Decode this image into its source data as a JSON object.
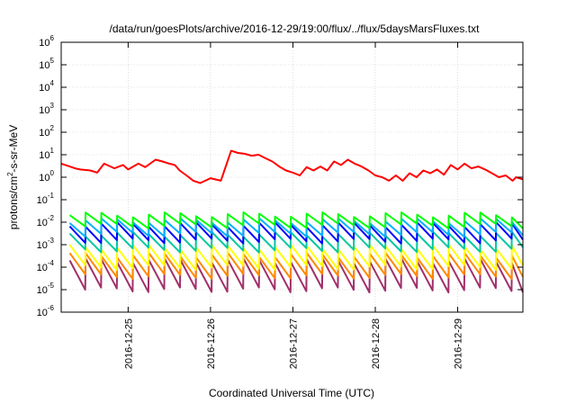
{
  "chart_data": {
    "type": "line",
    "title": "/data/run/goesPlots/archive/2016-12-29/19:00/flux/../flux/5daysMarsFluxes.txt",
    "xlabel": "Coordinated Universal Time (UTC)",
    "ylabel": "protons/cm2-s-sr-MeV",
    "ylabel_base": "protons/cm",
    "ylabel_sup": "2",
    "ylabel_rest": "-s-sr-MeV",
    "yscale": "log",
    "ylim": [
      1e-06,
      1000000.0
    ],
    "y_ticks": [
      {
        "value": -6,
        "label": "-6"
      },
      {
        "value": -5,
        "label": "-5"
      },
      {
        "value": -4,
        "label": "-4"
      },
      {
        "value": -3,
        "label": "-3"
      },
      {
        "value": -2,
        "label": "-2"
      },
      {
        "value": -1,
        "label": "-1"
      },
      {
        "value": 0,
        "label": "0"
      },
      {
        "value": 1,
        "label": "1"
      },
      {
        "value": 2,
        "label": "2"
      },
      {
        "value": 3,
        "label": "3"
      },
      {
        "value": 4,
        "label": "4"
      },
      {
        "value": 5,
        "label": "5"
      },
      {
        "value": 6,
        "label": "6"
      }
    ],
    "xlim": [
      "2016-12-24 04:30",
      "2016-12-29 19:00"
    ],
    "x_ticks": [
      "2016-12-25",
      "2016-12-26",
      "2016-12-27",
      "2016-12-28",
      "2016-12-29"
    ],
    "grid": true,
    "legend": "none",
    "series": [
      {
        "color": "#ff0000",
        "x": [
          "2016-12-24 04:30",
          "2016-12-24 07:00",
          "2016-12-24 08:30",
          "2016-12-24 10:00",
          "2016-12-24 13:00",
          "2016-12-24 15:00",
          "2016-12-24 17:00",
          "2016-12-24 20:00",
          "2016-12-24 22:30",
          "2016-12-25 00:00",
          "2016-12-25 03:00",
          "2016-12-25 05:00",
          "2016-12-25 08:00",
          "2016-12-25 10:00",
          "2016-12-25 12:00",
          "2016-12-25 13:30",
          "2016-12-25 14:00",
          "2016-12-25 15:00",
          "2016-12-25 17:00",
          "2016-12-25 19:00",
          "2016-12-25 21:00",
          "2016-12-26 00:00",
          "2016-12-26 03:00",
          "2016-12-26 06:00",
          "2016-12-26 08:00",
          "2016-12-26 10:00",
          "2016-12-26 12:00",
          "2016-12-26 14:00",
          "2016-12-26 16:00",
          "2016-12-26 18:00",
          "2016-12-26 20:00",
          "2016-12-26 22:00",
          "2016-12-27 00:00",
          "2016-12-27 02:00",
          "2016-12-27 04:00",
          "2016-12-27 06:00",
          "2016-12-27 08:00",
          "2016-12-27 10:00",
          "2016-12-27 12:00",
          "2016-12-27 14:00",
          "2016-12-27 16:00",
          "2016-12-27 18:00",
          "2016-12-27 20:00",
          "2016-12-27 22:00",
          "2016-12-28 00:00",
          "2016-12-28 02:00",
          "2016-12-28 04:00",
          "2016-12-28 06:00",
          "2016-12-28 08:00",
          "2016-12-28 10:00",
          "2016-12-28 12:00",
          "2016-12-28 14:00",
          "2016-12-28 16:00",
          "2016-12-28 18:00",
          "2016-12-28 20:00",
          "2016-12-28 22:00",
          "2016-12-29 00:00",
          "2016-12-29 02:00",
          "2016-12-29 04:00",
          "2016-12-29 06:00",
          "2016-12-29 08:00",
          "2016-12-29 10:00",
          "2016-12-29 12:00",
          "2016-12-29 14:00",
          "2016-12-29 16:00",
          "2016-12-29 17:00",
          "2016-12-29 19:00"
        ],
        "y": [
          4,
          3,
          2.5,
          2.2,
          2,
          1.6,
          4,
          2.5,
          3.5,
          2.2,
          4,
          2.8,
          6,
          5,
          4,
          3.5,
          3,
          2,
          1.2,
          0.7,
          0.55,
          0.9,
          0.7,
          15,
          12,
          11,
          9,
          10,
          7,
          5,
          3,
          2,
          1.6,
          1.2,
          2.8,
          2,
          3,
          2,
          5,
          3.5,
          6,
          4,
          3,
          2,
          1.2,
          1,
          0.7,
          1.2,
          0.7,
          1.5,
          1,
          2,
          1.5,
          2.2,
          1.3,
          3.5,
          2.2,
          4,
          2.5,
          3,
          2.2,
          1.5,
          1,
          1.2,
          0.7,
          1,
          0.8
        ]
      },
      {
        "color": "#00ff00",
        "peak": 0.022,
        "trough": 0.007
      },
      {
        "color": "#00b0ff",
        "peak": 0.012,
        "trough": 0.003
      },
      {
        "color": "#0000ff",
        "peak": 0.008,
        "trough": 0.0015
      },
      {
        "color": "#00c8a0",
        "peak": 0.003,
        "trough": 0.0006
      },
      {
        "color": "#ffff00",
        "peak": 0.0008,
        "trough": 0.0001
      },
      {
        "color": "#ff8800",
        "peak": 0.00035,
        "trough": 4e-05
      },
      {
        "color": "#a0306a",
        "peak": 0.0002,
        "trough": 1e-05
      }
    ],
    "oscillation_period_hours": 4.6
  }
}
